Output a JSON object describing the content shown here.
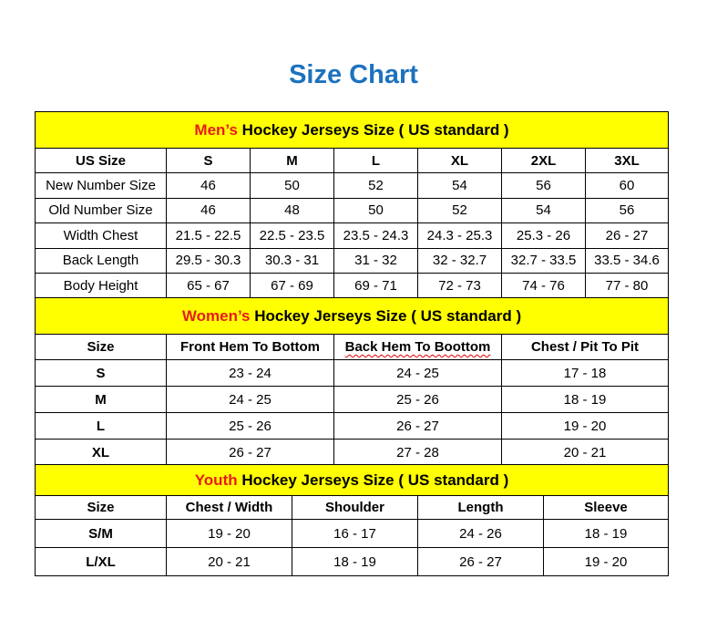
{
  "title": "Size Chart",
  "colors": {
    "title": "#1c72be",
    "banner_bg": "#ffff00",
    "accent": "#e81b1b"
  },
  "men": {
    "banner_accent": "Men’s",
    "banner_rest": " Hockey Jerseys Size ( US standard )",
    "headers": [
      "US Size",
      "S",
      "M",
      "L",
      "XL",
      "2XL",
      "3XL"
    ],
    "rows": [
      [
        "New Number Size",
        "46",
        "50",
        "52",
        "54",
        "56",
        "60"
      ],
      [
        "Old Number Size",
        "46",
        "48",
        "50",
        "52",
        "54",
        "56"
      ],
      [
        "Width Chest",
        "21.5 - 22.5",
        "22.5 - 23.5",
        "23.5 - 24.3",
        "24.3 - 25.3",
        "25.3 - 26",
        "26 - 27"
      ],
      [
        "Back Length",
        "29.5 - 30.3",
        "30.3 - 31",
        "31 - 32",
        "32 - 32.7",
        "32.7 - 33.5",
        "33.5 - 34.6"
      ],
      [
        "Body Height",
        "65 - 67",
        "67 - 69",
        "69 - 71",
        "72 - 73",
        "74 - 76",
        "77 - 80"
      ]
    ]
  },
  "women": {
    "banner_accent": "Women’s",
    "banner_rest": " Hockey Jerseys Size ( US standard )",
    "headers": [
      "Size",
      "Front Hem To Bottom",
      "Back Hem To Boottom",
      "Chest / Pit To Pit"
    ],
    "rows": [
      [
        "S",
        "23 - 24",
        "24 - 25",
        "17 - 18"
      ],
      [
        "M",
        "24 - 25",
        "25 - 26",
        "18 - 19"
      ],
      [
        "L",
        "25 - 26",
        "26 - 27",
        "19 - 20"
      ],
      [
        "XL",
        "26 - 27",
        "27 - 28",
        "20 - 21"
      ]
    ]
  },
  "youth": {
    "banner_accent": "Youth",
    "banner_rest": " Hockey Jerseys Size ( US standard )",
    "headers": [
      "Size",
      "Chest / Width",
      "Shoulder",
      "Length",
      "Sleeve"
    ],
    "rows": [
      [
        "S/M",
        "19 - 20",
        "16 - 17",
        "24 - 26",
        "18 - 19"
      ],
      [
        "L/XL",
        "20 - 21",
        "18 - 19",
        "26 - 27",
        "19 - 20"
      ]
    ]
  }
}
